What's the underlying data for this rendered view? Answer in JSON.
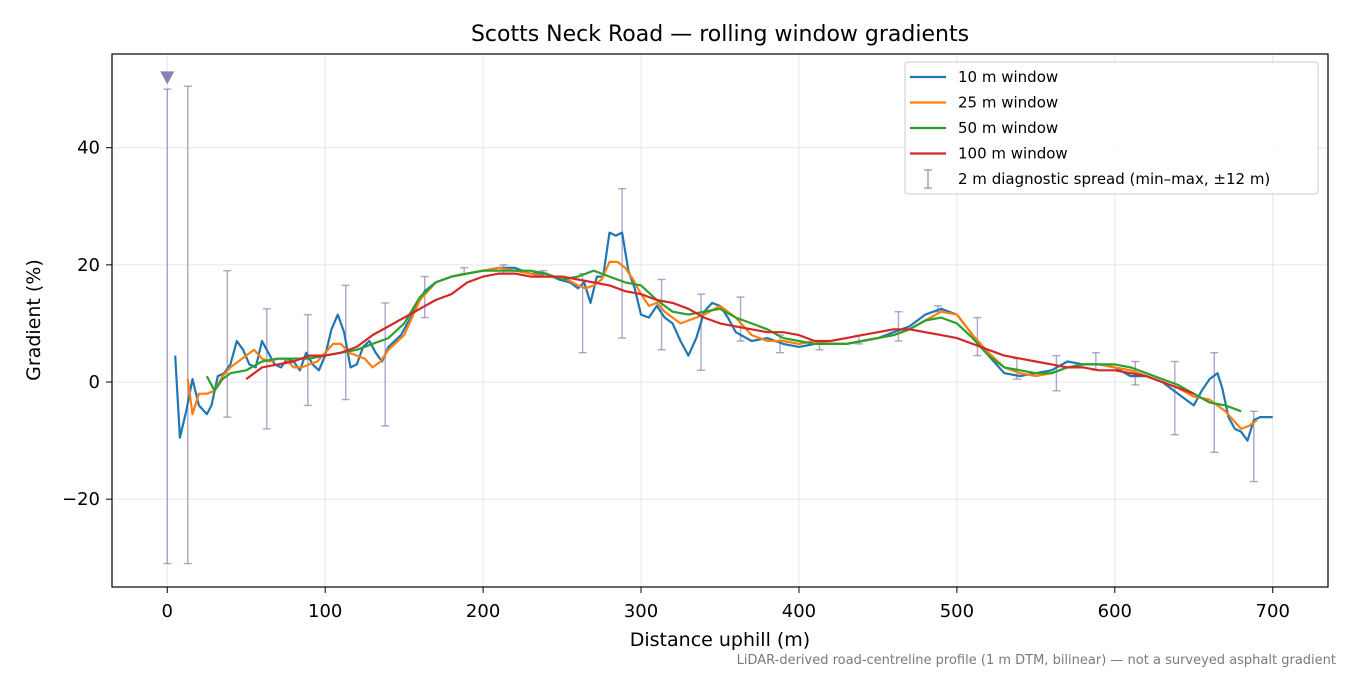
{
  "chart_data": {
    "type": "line",
    "title": "Scotts Neck Road — rolling window gradients",
    "xlabel": "Distance uphill (m)",
    "ylabel": "Gradient (%)",
    "xlim": [
      -35,
      735
    ],
    "ylim": [
      -35,
      56
    ],
    "xticks": [
      0,
      100,
      200,
      300,
      400,
      500,
      600,
      700
    ],
    "xtick_labels": [
      "0",
      "100",
      "200",
      "300",
      "400",
      "500",
      "600",
      "700"
    ],
    "yticks": [
      -20,
      0,
      20,
      40
    ],
    "ytick_labels": [
      "−20",
      "0",
      "20",
      "40"
    ],
    "grid": true,
    "legend_position": "top-right",
    "footnote": "LiDAR-derived road-centreline profile (1 m DTM, bilinear) — not a surveyed asphalt gradient",
    "colors": {
      "s10": "#1f77b4",
      "s25": "#ff7f0e",
      "s50": "#2ca02c",
      "s100": "#d62728",
      "errorbar": "#8c7fb5"
    },
    "series": [
      {
        "name": "10 m window",
        "color": "#1f77b4",
        "x": [
          5,
          8,
          12,
          16,
          20,
          25,
          28,
          32,
          36,
          40,
          44,
          48,
          52,
          56,
          60,
          64,
          68,
          72,
          76,
          80,
          84,
          88,
          92,
          96,
          100,
          104,
          108,
          112,
          116,
          120,
          124,
          128,
          132,
          136,
          140,
          148,
          155,
          163,
          170,
          180,
          190,
          200,
          210,
          220,
          230,
          240,
          248,
          255,
          260,
          264,
          268,
          272,
          276,
          280,
          284,
          288,
          292,
          296,
          300,
          305,
          310,
          315,
          320,
          325,
          330,
          335,
          340,
          345,
          350,
          355,
          360,
          370,
          380,
          390,
          400,
          410,
          420,
          430,
          440,
          450,
          460,
          470,
          480,
          490,
          500,
          510,
          520,
          530,
          540,
          550,
          560,
          570,
          580,
          590,
          600,
          610,
          620,
          630,
          640,
          645,
          650,
          655,
          660,
          665,
          668,
          672,
          676,
          680,
          684,
          688,
          692,
          696,
          700
        ],
        "y": [
          4.5,
          -9.5,
          -5,
          0.5,
          -4,
          -5.5,
          -4,
          1,
          1.5,
          3,
          7,
          5.5,
          3,
          2.5,
          7,
          5,
          3,
          2.5,
          4,
          3.5,
          2,
          5,
          3,
          2,
          4.5,
          9,
          11.5,
          8.5,
          2.5,
          3,
          6,
          7,
          5,
          3.5,
          6,
          8,
          11.5,
          15.5,
          17,
          18,
          18.5,
          19,
          19.5,
          19.5,
          18.5,
          18.5,
          17.5,
          17,
          16,
          17,
          13.5,
          18,
          18,
          25.5,
          25,
          25.5,
          19,
          16,
          11.5,
          11,
          13,
          11,
          10,
          7,
          4.5,
          7.5,
          12,
          13.5,
          13,
          11,
          8.5,
          7,
          7.5,
          6.5,
          6,
          6.5,
          6.5,
          6.5,
          7,
          7.5,
          8.5,
          9.5,
          11.5,
          12.5,
          11.5,
          8,
          4.5,
          1.5,
          1,
          1.5,
          2,
          3.5,
          3,
          3,
          2.5,
          1,
          1,
          0,
          -2,
          -3,
          -4,
          -1.5,
          0.5,
          1.5,
          -1,
          -6,
          -8,
          -8.5,
          -10,
          -6.5,
          -6,
          -6,
          -6
        ]
      },
      {
        "name": "25 m window",
        "color": "#ff7f0e",
        "x": [
          13,
          16,
          20,
          25,
          30,
          35,
          40,
          45,
          50,
          55,
          60,
          65,
          70,
          75,
          80,
          85,
          90,
          95,
          100,
          105,
          110,
          115,
          120,
          125,
          130,
          135,
          140,
          150,
          160,
          170,
          180,
          190,
          200,
          210,
          220,
          230,
          240,
          250,
          260,
          265,
          270,
          275,
          280,
          285,
          290,
          295,
          300,
          305,
          310,
          315,
          320,
          325,
          330,
          340,
          350,
          360,
          370,
          380,
          390,
          400,
          410,
          420,
          430,
          440,
          450,
          460,
          470,
          480,
          490,
          500,
          510,
          520,
          530,
          540,
          550,
          560,
          570,
          580,
          590,
          600,
          610,
          620,
          630,
          640,
          650,
          660,
          670,
          680,
          685,
          690
        ],
        "y": [
          0.5,
          -5.5,
          -2,
          -2,
          -1.5,
          1,
          2.5,
          3.5,
          4.5,
          5.5,
          4,
          3.5,
          4,
          4,
          2.5,
          2.5,
          3,
          3.5,
          5,
          6.5,
          6.5,
          5,
          4.5,
          4,
          2.5,
          3.5,
          5.5,
          8,
          14,
          17,
          18,
          18.5,
          19,
          19.5,
          19,
          18.5,
          18,
          18,
          16.5,
          16,
          16.5,
          17.5,
          20.5,
          20.5,
          19.5,
          17.5,
          15,
          13,
          13.5,
          12,
          11,
          10,
          10.5,
          11.5,
          13,
          11,
          8,
          7,
          7,
          6.5,
          7,
          6.5,
          6.5,
          7,
          7.5,
          8,
          9,
          10.5,
          12,
          11.5,
          8,
          5,
          2.5,
          1.5,
          1,
          1.5,
          2.5,
          3,
          3,
          2.5,
          2,
          1,
          0,
          -1,
          -2.5,
          -3,
          -5,
          -8,
          -7.5,
          -6.5
        ]
      },
      {
        "name": "50 m window",
        "color": "#2ca02c",
        "x": [
          25,
          30,
          35,
          40,
          50,
          60,
          70,
          80,
          90,
          100,
          110,
          120,
          130,
          140,
          150,
          160,
          170,
          180,
          190,
          200,
          210,
          220,
          230,
          240,
          250,
          260,
          270,
          280,
          290,
          300,
          310,
          320,
          330,
          340,
          350,
          360,
          370,
          380,
          390,
          400,
          410,
          420,
          430,
          440,
          450,
          460,
          470,
          480,
          490,
          500,
          510,
          520,
          530,
          540,
          550,
          560,
          570,
          580,
          590,
          600,
          610,
          620,
          630,
          640,
          650,
          660,
          670,
          680
        ],
        "y": [
          1,
          -1.5,
          0.5,
          1.5,
          2,
          3.5,
          4,
          4,
          4,
          4.5,
          5,
          5.5,
          6.5,
          7.5,
          10,
          14.5,
          17,
          18,
          18.5,
          19,
          19,
          19,
          19,
          18.5,
          17.5,
          18,
          19,
          18,
          17,
          16.5,
          14,
          12,
          11.5,
          12,
          12.5,
          11,
          10,
          9,
          7.5,
          7,
          6.5,
          6.5,
          6.5,
          7,
          7.5,
          8,
          9,
          10.5,
          11,
          10,
          7.5,
          4.5,
          2.5,
          2,
          1.5,
          1.5,
          2.5,
          3,
          3,
          3,
          2.5,
          1.5,
          0.5,
          -0.5,
          -2,
          -3.5,
          -4,
          -5
        ]
      },
      {
        "name": "100 m window",
        "color": "#d62728",
        "x": [
          50,
          60,
          70,
          80,
          90,
          100,
          110,
          120,
          130,
          140,
          150,
          160,
          170,
          180,
          190,
          200,
          210,
          220,
          230,
          240,
          250,
          260,
          270,
          280,
          290,
          300,
          310,
          320,
          330,
          340,
          350,
          360,
          370,
          380,
          390,
          400,
          410,
          420,
          430,
          440,
          450,
          460,
          470,
          480,
          490,
          500,
          510,
          520,
          530,
          540,
          550,
          560,
          570,
          580,
          590,
          600,
          610,
          620,
          630,
          640,
          650
        ],
        "y": [
          0.5,
          2.5,
          3,
          3.5,
          4.5,
          4.5,
          5,
          6,
          8,
          9.5,
          11,
          12.5,
          14,
          15,
          17,
          18,
          18.5,
          18.5,
          18,
          18,
          18,
          17.5,
          17,
          16.5,
          15.5,
          15,
          14,
          13.5,
          12.5,
          11,
          10,
          9.5,
          9,
          8.5,
          8.5,
          8,
          7,
          7,
          7.5,
          8,
          8.5,
          9,
          9,
          8.5,
          8,
          7.5,
          6.5,
          5.5,
          4.5,
          4,
          3.5,
          3,
          2.5,
          2.5,
          2,
          2,
          1.5,
          1,
          0,
          -1,
          -2
        ]
      }
    ],
    "error_bars": {
      "name": "2 m diagnostic spread (min–max, ±12 m)",
      "color": "#8c7fb5",
      "x": [
        0,
        13,
        38,
        63,
        89,
        113,
        138,
        163,
        188,
        213,
        238,
        263,
        288,
        313,
        338,
        363,
        388,
        413,
        438,
        463,
        488,
        513,
        538,
        563,
        588,
        613,
        638,
        663,
        688
      ],
      "low": [
        -31,
        -31,
        -6,
        -8,
        -4,
        -3,
        -7.5,
        11,
        18.5,
        18.5,
        18,
        5,
        7.5,
        5.5,
        2,
        7,
        5,
        5.5,
        6.5,
        7,
        12,
        4.5,
        0.5,
        -1.5,
        2,
        -0.5,
        -9,
        -12,
        -17
      ],
      "high": [
        50,
        50.5,
        19,
        12.5,
        11.5,
        16.5,
        13.5,
        18,
        19.5,
        20,
        19,
        18.5,
        33,
        17.5,
        15,
        14.5,
        8,
        7,
        8,
        12,
        13,
        11,
        4,
        4.5,
        5,
        3.5,
        3.5,
        5,
        -5
      ]
    },
    "clipped_marker": {
      "x": 0,
      "y": 52
    }
  }
}
